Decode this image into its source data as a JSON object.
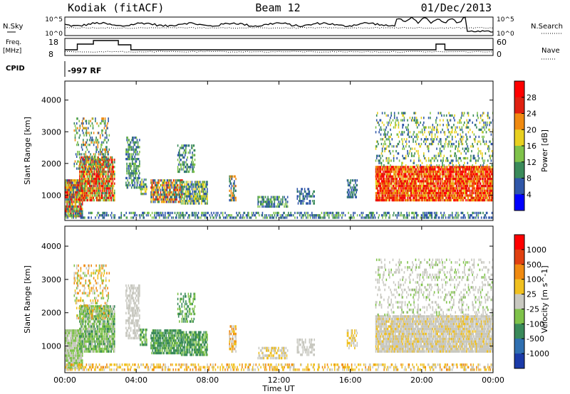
{
  "header": {
    "station": "Kodiak (fitACF)",
    "beam": "Beam 12",
    "date": "01/Dec/2013"
  },
  "aux_panels": {
    "nsky": {
      "label": "N.Sky",
      "ticks": [
        "10^5",
        "10^0"
      ]
    },
    "nsearch": {
      "label": "N.Search",
      "ticks": [
        "10^5",
        "10^0"
      ]
    },
    "freq": {
      "label_line1": "Freq.",
      "label_line2": "[MHz]",
      "ticks": [
        "18",
        "8"
      ]
    },
    "nave": {
      "label": "Nave",
      "ticks": [
        "60",
        "0"
      ]
    },
    "cpid": {
      "label": "CPID",
      "value": "-997 RF"
    }
  },
  "chart_data": [
    {
      "type": "heatmap",
      "name": "power",
      "xlabel": "",
      "ylabel": "Slant Range [km]",
      "yticks": [
        1000,
        2000,
        3000,
        4000
      ],
      "ylim": [
        200,
        4600
      ],
      "colorbar": {
        "label": "Power [dB]",
        "ticks": [
          "28",
          "24",
          "20",
          "16",
          "12",
          "8",
          "4"
        ],
        "colors": [
          "#0000ff",
          "#2f56a8",
          "#3a8a5a",
          "#7fc24a",
          "#e8d020",
          "#f08a10",
          "#e02010",
          "#ff0000"
        ]
      }
    },
    {
      "type": "heatmap",
      "name": "velocity",
      "xlabel": "Time UT",
      "ylabel": "Slant Range [km]",
      "yticks": [
        1000,
        2000,
        3000,
        4000
      ],
      "ylim": [
        200,
        4600
      ],
      "xticks": [
        "00:00",
        "04:00",
        "08:00",
        "12:00",
        "16:00",
        "20:00",
        "00:00"
      ],
      "colorbar": {
        "label": "Velocity [m s^-1]",
        "ticks": [
          "1000",
          "500",
          "100",
          "25",
          "-25",
          "-100",
          "-500",
          "-1000"
        ],
        "colors": [
          "#1a3aa8",
          "#2f6fb0",
          "#3a8a5a",
          "#7fc24a",
          "#c8c8c0",
          "#f0c020",
          "#f08a10",
          "#e04010",
          "#ff0000"
        ]
      }
    }
  ],
  "colors": {
    "gray_scatter": "#c4c4bc",
    "panel_border": "#000000"
  }
}
